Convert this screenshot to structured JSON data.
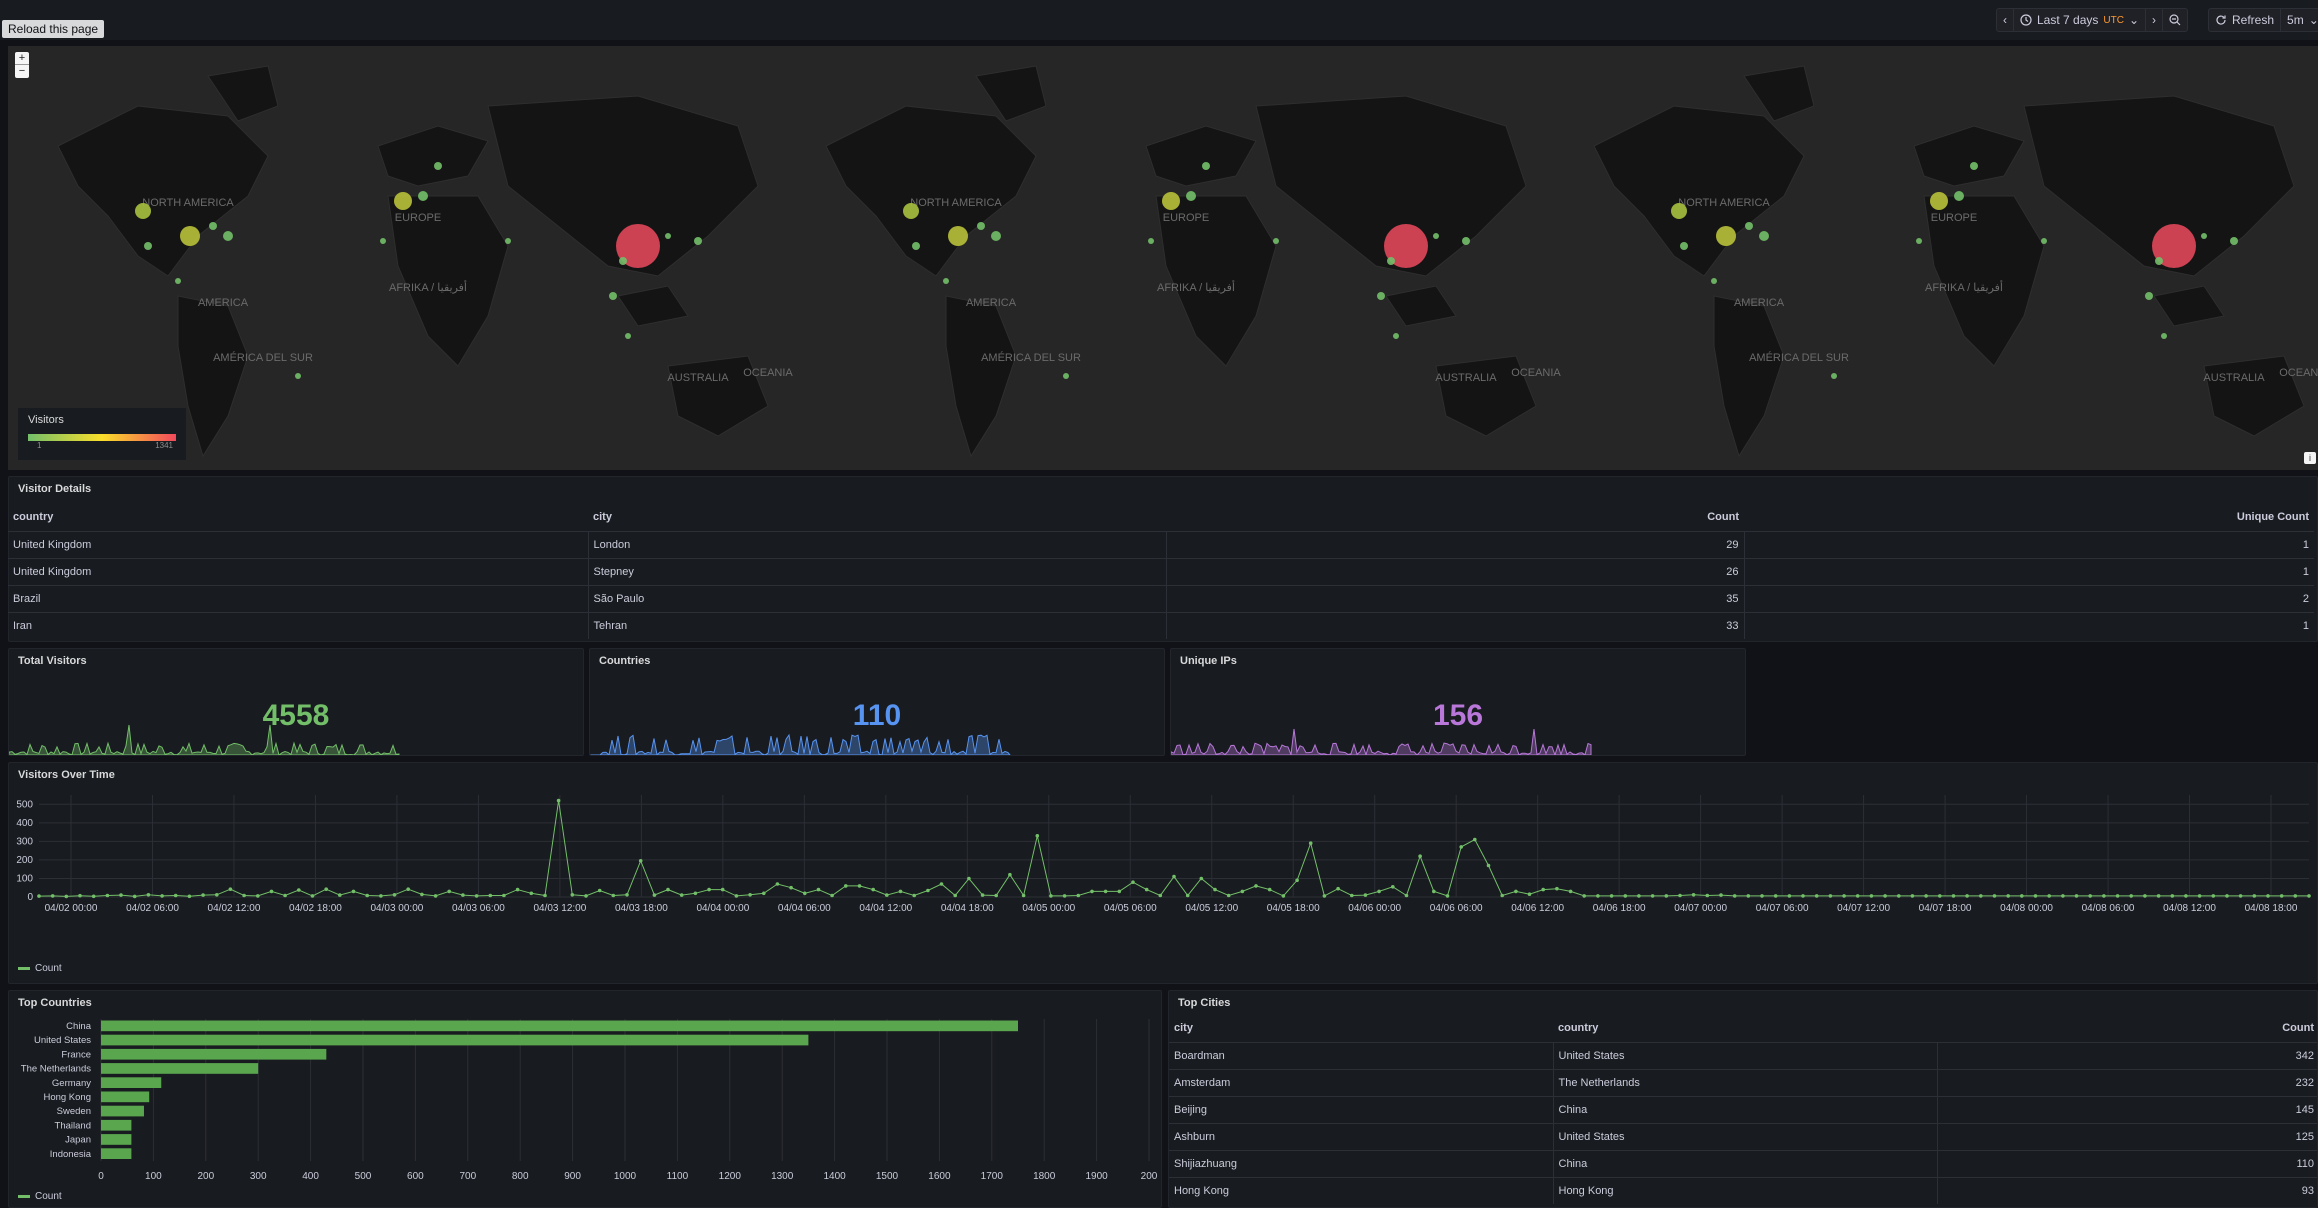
{
  "toolbar": {
    "reload_label": "Reload this page",
    "time_range": "Last 7 days",
    "timezone": "UTC",
    "refresh_label": "Refresh",
    "refresh_interval": "5m"
  },
  "map": {
    "legend_title": "Visitors",
    "legend_min": "1",
    "legend_max": "1341",
    "labels": [
      "NORTH AMERICA",
      "EUROPE",
      "AFRIKA / أفريقيا",
      "AMÉRICA DEL SUR",
      "AUSTRALIA",
      "OCEANIA",
      "AMERICA"
    ],
    "colors": {
      "low": "#73bf69",
      "mid": "#fade2a",
      "high": "#f2495c"
    }
  },
  "visitor_details": {
    "title": "Visitor Details",
    "columns": [
      "country",
      "city",
      "Count",
      "Unique Count"
    ],
    "rows": [
      [
        "United Kingdom",
        "London",
        "29",
        "1"
      ],
      [
        "United Kingdom",
        "Stepney",
        "26",
        "1"
      ],
      [
        "Brazil",
        "São Paulo",
        "35",
        "2"
      ],
      [
        "Iran",
        "Tehran",
        "33",
        "1"
      ]
    ]
  },
  "stats": [
    {
      "title": "Total Visitors",
      "value": "4558",
      "color": "#73bf69"
    },
    {
      "title": "Countries",
      "value": "110",
      "color": "#5794f2"
    },
    {
      "title": "Unique IPs",
      "value": "156",
      "color": "#b877d9"
    }
  ],
  "visitors_over_time": {
    "title": "Visitors Over Time",
    "legend": "Count",
    "yticks": [
      "0",
      "100",
      "200",
      "300",
      "400",
      "500"
    ],
    "xticks": [
      "04/02 00:00",
      "04/02 06:00",
      "04/02 12:00",
      "04/02 18:00",
      "04/03 00:00",
      "04/03 06:00",
      "04/03 12:00",
      "04/03 18:00",
      "04/04 00:00",
      "04/04 06:00",
      "04/04 12:00",
      "04/04 18:00",
      "04/05 00:00",
      "04/05 06:00",
      "04/05 12:00",
      "04/05 18:00",
      "04/06 00:00",
      "04/06 06:00",
      "04/06 12:00",
      "04/06 18:00",
      "04/07 00:00",
      "04/07 06:00",
      "04/07 12:00",
      "04/07 18:00",
      "04/08 00:00",
      "04/08 06:00",
      "04/08 12:00",
      "04/08 18:00"
    ]
  },
  "top_countries": {
    "title": "Top Countries",
    "legend": "Count",
    "xticks": [
      "0",
      "100",
      "200",
      "300",
      "400",
      "500",
      "600",
      "700",
      "800",
      "900",
      "1000",
      "1100",
      "1200",
      "1300",
      "1400",
      "1500",
      "1600",
      "1700",
      "1800",
      "1900",
      "200"
    ]
  },
  "top_cities": {
    "title": "Top Cities",
    "columns": [
      "city",
      "country",
      "Count"
    ],
    "rows": [
      [
        "Boardman",
        "United States",
        "342"
      ],
      [
        "Amsterdam",
        "The Netherlands",
        "232"
      ],
      [
        "Beijing",
        "China",
        "145"
      ],
      [
        "Ashburn",
        "United States",
        "125"
      ],
      [
        "Shijiazhuang",
        "China",
        "110"
      ],
      [
        "Hong Kong",
        "Hong Kong",
        "93"
      ]
    ]
  },
  "chart_data": [
    {
      "type": "line",
      "title": "Visitors Over Time",
      "ylim": [
        0,
        550
      ],
      "series": [
        {
          "name": "Count",
          "values": [
            5,
            6,
            3,
            7,
            4,
            8,
            10,
            3,
            12,
            6,
            8,
            4,
            10,
            12,
            42,
            8,
            6,
            30,
            8,
            38,
            6,
            42,
            10,
            30,
            8,
            6,
            12,
            42,
            14,
            6,
            30,
            10,
            6,
            8,
            8,
            40,
            20,
            8,
            520,
            12,
            6,
            35,
            8,
            12,
            195,
            10,
            40,
            10,
            20,
            40,
            40,
            6,
            12,
            20,
            70,
            50,
            20,
            40,
            8,
            60,
            60,
            40,
            10,
            30,
            8,
            35,
            70,
            8,
            100,
            10,
            8,
            120,
            8,
            330,
            6,
            6,
            8,
            30,
            30,
            30,
            80,
            40,
            8,
            110,
            8,
            100,
            40,
            8,
            30,
            60,
            40,
            6,
            90,
            290,
            6,
            45,
            8,
            10,
            30,
            55,
            8,
            220,
            30,
            6,
            270,
            310,
            170,
            8,
            30,
            15,
            40,
            45,
            30,
            6,
            6,
            6,
            6,
            6,
            6,
            6,
            8,
            12,
            8,
            10,
            6,
            6,
            6,
            6,
            6,
            6,
            6,
            6,
            6,
            6,
            6,
            6,
            6,
            6,
            6,
            6,
            6,
            6,
            6,
            6,
            6,
            6,
            6,
            6,
            6,
            6,
            6,
            6,
            6,
            6,
            6,
            6,
            6,
            6,
            6,
            6,
            6,
            6,
            6,
            6,
            6,
            6,
            6
          ]
        }
      ]
    },
    {
      "type": "bar",
      "title": "Top Countries",
      "categories": [
        "China",
        "United States",
        "France",
        "The Netherlands",
        "Germany",
        "Hong Kong",
        "Sweden",
        "Thailand",
        "Japan",
        "Indonesia"
      ],
      "series": [
        {
          "name": "Count",
          "values": [
            1750,
            1350,
            430,
            300,
            115,
            92,
            82,
            58,
            58,
            58
          ]
        }
      ],
      "xlim": [
        0,
        2000
      ]
    }
  ]
}
